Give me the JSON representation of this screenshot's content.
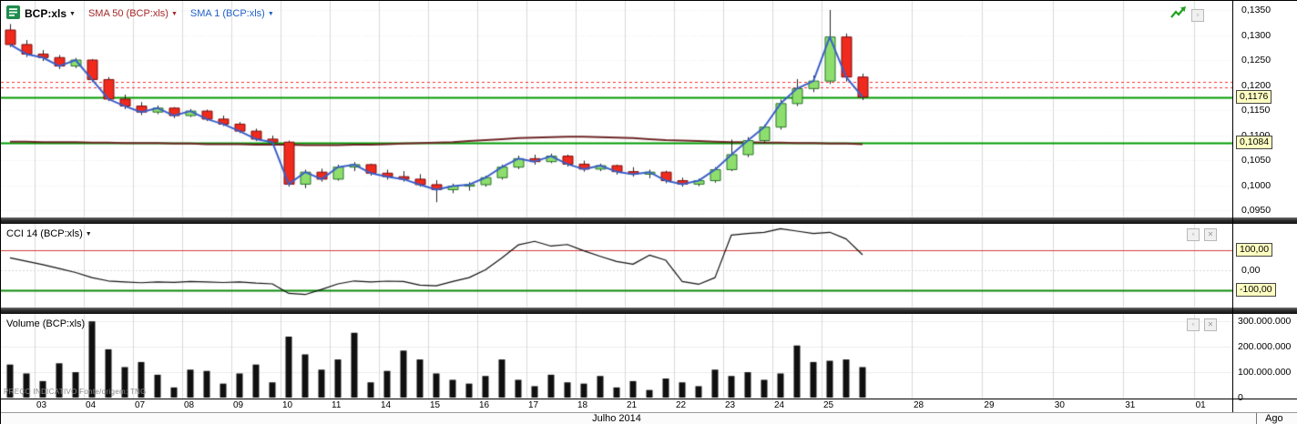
{
  "ui": {
    "icons": {
      "dropdown": "▼",
      "minimize": "▫",
      "close": "✕",
      "trend_arrow": "green-zigzag-arrow-icon",
      "instrument": "green-list-icon"
    }
  },
  "header": {
    "symbol_label": "BCP:xls",
    "sma50_label": "SMA 50 (BCP:xls)",
    "sma1_label": "SMA 1 (BCP:xls)"
  },
  "cci_panel": {
    "label": "CCI 14 (BCP:xls)"
  },
  "volume_panel": {
    "label": "Volume (BCP:xls)"
  },
  "footer": {
    "note": "PREÇO INDICATIVO    Fonte/origem: TNG"
  },
  "x_axis": {
    "month_label": "Julho 2014",
    "next_month_label": "Ago",
    "ticks": [
      {
        "label": "03",
        "slot": 1.5
      },
      {
        "label": "04",
        "slot": 4.5
      },
      {
        "label": "07",
        "slot": 7.5
      },
      {
        "label": "08",
        "slot": 10.5
      },
      {
        "label": "09",
        "slot": 13.5
      },
      {
        "label": "10",
        "slot": 16.5
      },
      {
        "label": "11",
        "slot": 19.5
      },
      {
        "label": "14",
        "slot": 22.5
      },
      {
        "label": "15",
        "slot": 25.5
      },
      {
        "label": "16",
        "slot": 28.5
      },
      {
        "label": "17",
        "slot": 31.5
      },
      {
        "label": "18",
        "slot": 34.5
      },
      {
        "label": "21",
        "slot": 37.5
      },
      {
        "label": "22",
        "slot": 40.5
      },
      {
        "label": "23",
        "slot": 43.5
      },
      {
        "label": "24",
        "slot": 46.5
      },
      {
        "label": "25",
        "slot": 49.5
      },
      {
        "label": "28",
        "slot": 55
      },
      {
        "label": "29",
        "slot": 59.3
      },
      {
        "label": "30",
        "slot": 63.6
      },
      {
        "label": "31",
        "slot": 67.9
      },
      {
        "label": "01",
        "slot": 72.2
      }
    ]
  },
  "chart_data": [
    {
      "type": "candlestick",
      "title": "BCP:xls price with SMA 50 and SMA 1",
      "ylim": [
        0.095,
        0.135
      ],
      "y_ticks": [
        {
          "label": "0,1350",
          "value": 0.135
        },
        {
          "label": "0,1300",
          "value": 0.13
        },
        {
          "label": "0,1250",
          "value": 0.125
        },
        {
          "label": "0,1200",
          "value": 0.12
        },
        {
          "label": "0,1150",
          "value": 0.115
        },
        {
          "label": "0,1100",
          "value": 0.11
        },
        {
          "label": "0,1050",
          "value": 0.105
        },
        {
          "label": "0,1000",
          "value": 0.1
        },
        {
          "label": "0,0950",
          "value": 0.095
        }
      ],
      "price_flags": [
        {
          "label": "0,1176",
          "value": 0.1176
        },
        {
          "label": "0,1084",
          "value": 0.1084
        }
      ],
      "hlines": [
        {
          "value": 0.1176,
          "color": "#009b00",
          "style": "solid",
          "width": 2
        },
        {
          "value": 0.1084,
          "color": "#009b00",
          "style": "solid",
          "width": 2
        },
        {
          "value": 0.1207,
          "color": "#ff2a2a",
          "style": "dashed",
          "width": 1
        },
        {
          "value": 0.1196,
          "color": "#ff2a2a",
          "style": "dashed",
          "width": 1
        }
      ],
      "up_color": "#8ede6e",
      "up_border": "#267326",
      "down_color": "#f02a1c",
      "down_border": "#7c0f0f",
      "sma1_color": "#3a5fc8",
      "sma50_color": "#6e2626",
      "candles": [
        [
          0.131,
          0.1322,
          0.1276,
          0.1281
        ],
        [
          0.1281,
          0.129,
          0.1256,
          0.1262
        ],
        [
          0.1262,
          0.127,
          0.1248,
          0.1255
        ],
        [
          0.1255,
          0.126,
          0.1232,
          0.1238
        ],
        [
          0.1238,
          0.1254,
          0.1234,
          0.125
        ],
        [
          0.125,
          0.1252,
          0.1206,
          0.1211
        ],
        [
          0.1211,
          0.1216,
          0.1168,
          0.1172
        ],
        [
          0.1172,
          0.1181,
          0.1152,
          0.1158
        ],
        [
          0.1158,
          0.1166,
          0.114,
          0.1146
        ],
        [
          0.1146,
          0.1159,
          0.1142,
          0.1154
        ],
        [
          0.1154,
          0.1156,
          0.1134,
          0.1139
        ],
        [
          0.1139,
          0.1152,
          0.1136,
          0.1148
        ],
        [
          0.1148,
          0.1151,
          0.1128,
          0.1132
        ],
        [
          0.1132,
          0.1139,
          0.1118,
          0.1122
        ],
        [
          0.1122,
          0.1126,
          0.1104,
          0.1108
        ],
        [
          0.1108,
          0.1113,
          0.1088,
          0.1092
        ],
        [
          0.1092,
          0.1099,
          0.1081,
          0.1086
        ],
        [
          0.1086,
          0.1089,
          0.0997,
          0.1002
        ],
        [
          0.1002,
          0.1031,
          0.0994,
          0.1026
        ],
        [
          0.1026,
          0.1033,
          0.1007,
          0.1012
        ],
        [
          0.1012,
          0.1041,
          0.1009,
          0.1036
        ],
        [
          0.1036,
          0.1046,
          0.1028,
          0.1041
        ],
        [
          0.1041,
          0.1043,
          0.1019,
          0.1024
        ],
        [
          0.1024,
          0.1031,
          0.1011,
          0.1017
        ],
        [
          0.1017,
          0.1028,
          0.1007,
          0.1012
        ],
        [
          0.1012,
          0.1022,
          0.0997,
          0.1001
        ],
        [
          0.1001,
          0.101,
          0.0966,
          0.0991
        ],
        [
          0.0991,
          0.1003,
          0.0984,
          0.0998
        ],
        [
          0.0998,
          0.1006,
          0.0989,
          0.1001
        ],
        [
          0.1001,
          0.1019,
          0.0997,
          0.1015
        ],
        [
          0.1015,
          0.1041,
          0.1011,
          0.1036
        ],
        [
          0.1036,
          0.1059,
          0.1032,
          0.1053
        ],
        [
          0.1053,
          0.1061,
          0.1041,
          0.1047
        ],
        [
          0.1047,
          0.1063,
          0.1044,
          0.1058
        ],
        [
          0.1058,
          0.1061,
          0.1037,
          0.1042
        ],
        [
          0.1042,
          0.1049,
          0.1027,
          0.1032
        ],
        [
          0.1032,
          0.1043,
          0.1028,
          0.1039
        ],
        [
          0.1039,
          0.1041,
          0.1021,
          0.1027
        ],
        [
          0.1027,
          0.1036,
          0.1017,
          0.1022
        ],
        [
          0.1022,
          0.1031,
          0.1014,
          0.1026
        ],
        [
          0.1026,
          0.1029,
          0.1004,
          0.1009
        ],
        [
          0.1009,
          0.1015,
          0.0997,
          0.1002
        ],
        [
          0.1002,
          0.1013,
          0.0998,
          0.1009
        ],
        [
          0.1009,
          0.1036,
          0.1005,
          0.1031
        ],
        [
          0.1031,
          0.1091,
          0.1028,
          0.1061
        ],
        [
          0.1061,
          0.1096,
          0.1056,
          0.1089
        ],
        [
          0.1089,
          0.1121,
          0.1085,
          0.1116
        ],
        [
          0.1116,
          0.1171,
          0.1111,
          0.1163
        ],
        [
          0.1163,
          0.1212,
          0.1158,
          0.1193
        ],
        [
          0.1193,
          0.1219,
          0.1186,
          0.1208
        ],
        [
          0.1208,
          0.135,
          0.1202,
          0.1296
        ],
        [
          0.1296,
          0.1303,
          0.1207,
          0.1216
        ],
        [
          0.1216,
          0.1223,
          0.117,
          0.1176
        ]
      ],
      "sma50": [
        0.1087,
        0.1087,
        0.1086,
        0.1086,
        0.1086,
        0.1085,
        0.1085,
        0.1084,
        0.1084,
        0.1084,
        0.1083,
        0.1083,
        0.1082,
        0.1082,
        0.1082,
        0.1081,
        0.1081,
        0.1081,
        0.108,
        0.108,
        0.108,
        0.1081,
        0.1081,
        0.1082,
        0.1083,
        0.1084,
        0.1085,
        0.1086,
        0.1088,
        0.109,
        0.1092,
        0.1094,
        0.1095,
        0.1096,
        0.1097,
        0.1097,
        0.1096,
        0.1095,
        0.1094,
        0.1092,
        0.109,
        0.1089,
        0.1088,
        0.1087,
        0.1086,
        0.1086,
        0.1085,
        0.1085,
        0.1084,
        0.1084,
        0.1083,
        0.1083,
        0.1082
      ]
    },
    {
      "type": "line",
      "title": "CCI 14 (BCP:xls)",
      "color": "#101010",
      "ylim": [
        -190,
        235
      ],
      "y_ticks": [
        {
          "label": "100,00",
          "value": 100,
          "boxed": true
        },
        {
          "label": "0,00",
          "value": 0,
          "boxed": false
        },
        {
          "label": "-100,00",
          "value": -100,
          "boxed": true
        }
      ],
      "hlines": [
        {
          "value": 100,
          "color": "#d43c3c",
          "width": 1
        },
        {
          "value": -100,
          "color": "#0b8a0b",
          "width": 2
        }
      ],
      "values": [
        62,
        45,
        28,
        8,
        -12,
        -38,
        -55,
        -60,
        -64,
        -60,
        -62,
        -58,
        -60,
        -63,
        -60,
        -66,
        -70,
        -118,
        -124,
        -98,
        -70,
        -55,
        -60,
        -56,
        -58,
        -76,
        -80,
        -58,
        -38,
        2,
        62,
        128,
        146,
        122,
        130,
        98,
        70,
        44,
        30,
        76,
        50,
        -58,
        -72,
        -38,
        178,
        186,
        192,
        210,
        198,
        186,
        192,
        158,
        78
      ]
    },
    {
      "type": "bar",
      "title": "Volume (BCP:xls)",
      "color": "#101010",
      "ylim": [
        0,
        315
      ],
      "y_ticks": [
        {
          "label": "300.000.000",
          "value": 300
        },
        {
          "label": "200.000.000",
          "value": 200
        },
        {
          "label": "100.000.000",
          "value": 100
        },
        {
          "label": "0",
          "value": 0
        }
      ],
      "values_millions": [
        130,
        95,
        65,
        135,
        100,
        300,
        190,
        120,
        140,
        90,
        40,
        110,
        105,
        55,
        95,
        130,
        60,
        240,
        170,
        110,
        150,
        255,
        60,
        105,
        185,
        150,
        95,
        70,
        55,
        85,
        150,
        70,
        45,
        90,
        60,
        55,
        85,
        40,
        65,
        30,
        75,
        60,
        45,
        110,
        85,
        100,
        70,
        95,
        205,
        140,
        145,
        150,
        120
      ]
    }
  ]
}
